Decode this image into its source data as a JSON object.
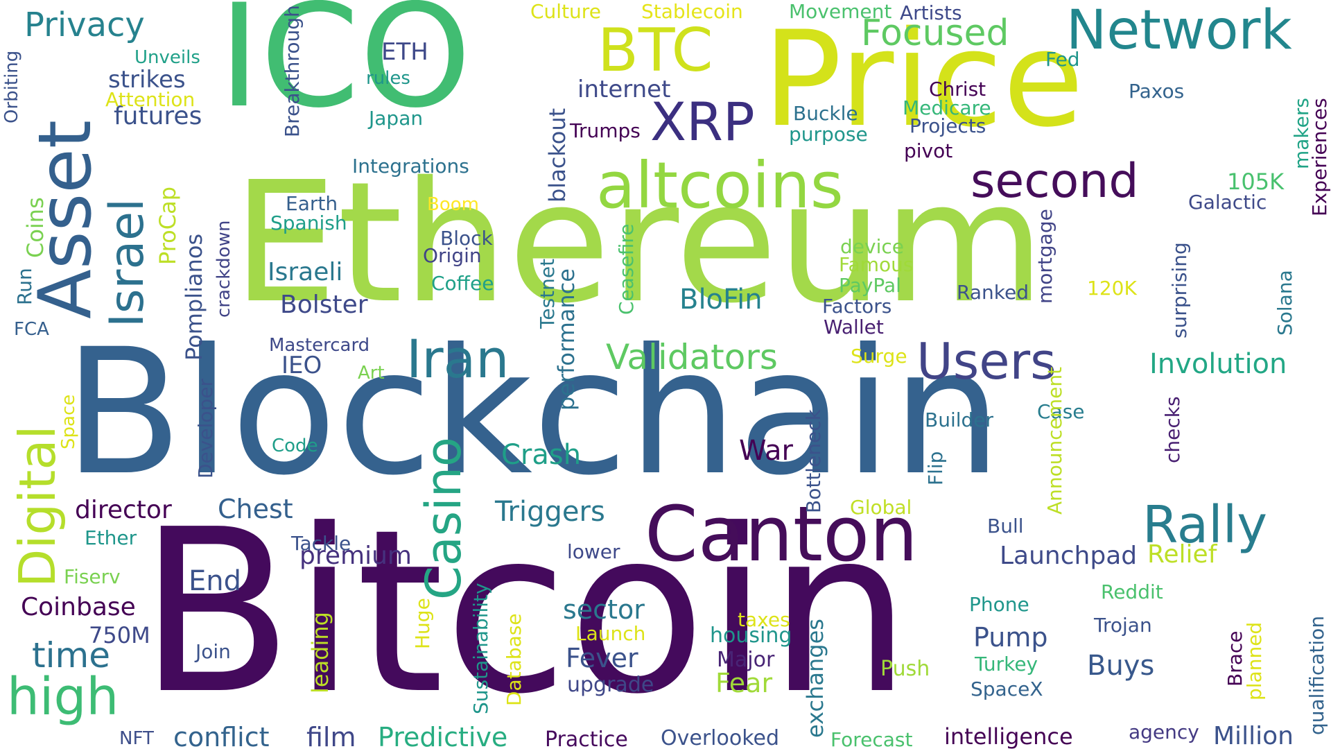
{
  "words": [
    {
      "text": "Bitcoin",
      "color": "#440a5c"
    },
    {
      "text": "Blockchain",
      "color": "#35628e"
    },
    {
      "text": "Ethereum",
      "color": "#a3d94a"
    },
    {
      "text": "Price",
      "color": "#d4e21a"
    },
    {
      "text": "ICO",
      "color": "#41bd72"
    },
    {
      "text": "Asset",
      "color": "#34608d"
    },
    {
      "text": "Canton",
      "color": "#450d5a"
    },
    {
      "text": "altcoins",
      "color": "#93d741"
    },
    {
      "text": "Network",
      "color": "#22868d"
    },
    {
      "text": "BTC",
      "color": "#cfe11c"
    },
    {
      "text": "second",
      "color": "#450d5a"
    },
    {
      "text": "Israel",
      "color": "#2c718e"
    },
    {
      "text": "Digital",
      "color": "#b5de2b"
    },
    {
      "text": "Iran",
      "color": "#2a788e"
    },
    {
      "text": "Users",
      "color": "#414487"
    },
    {
      "text": "Rally",
      "color": "#287d8e"
    },
    {
      "text": "Casino",
      "color": "#25a584"
    },
    {
      "text": "high",
      "color": "#3dbc74"
    },
    {
      "text": "XRP",
      "color": "#3b2f80"
    },
    {
      "text": "Focused",
      "color": "#5ec962"
    },
    {
      "text": "Validators",
      "color": "#5ec962"
    },
    {
      "text": "Privacy",
      "color": "#26828e"
    },
    {
      "text": "Involution",
      "color": "#22a785"
    },
    {
      "text": "BloFin",
      "color": "#26828e"
    },
    {
      "text": "Crash",
      "color": "#1f9f88"
    },
    {
      "text": "War",
      "color": "#440154"
    },
    {
      "text": "Triggers",
      "color": "#2a788e"
    },
    {
      "text": "Chest",
      "color": "#34608d"
    },
    {
      "text": "director",
      "color": "#440154"
    },
    {
      "text": "premium",
      "color": "#46327e"
    },
    {
      "text": "Launchpad",
      "color": "#3e4a89"
    },
    {
      "text": "Relief",
      "color": "#bddf26"
    },
    {
      "text": "End",
      "color": "#3b528b"
    },
    {
      "text": "Coinbase",
      "color": "#440154"
    },
    {
      "text": "750M",
      "color": "#3e4989"
    },
    {
      "text": "time",
      "color": "#2c718e"
    },
    {
      "text": "sector",
      "color": "#2a788e"
    },
    {
      "text": "Fever",
      "color": "#3b528b"
    },
    {
      "text": "Pump",
      "color": "#3b528b"
    },
    {
      "text": "Buys",
      "color": "#38588c"
    },
    {
      "text": "Fear",
      "color": "#a0da39"
    },
    {
      "text": "Major",
      "color": "#482475"
    },
    {
      "text": "upgrade",
      "color": "#3f4788"
    },
    {
      "text": "housing",
      "color": "#1f958b"
    },
    {
      "text": "Million",
      "color": "#3b528b"
    },
    {
      "text": "conflict",
      "color": "#33638d"
    },
    {
      "text": "film",
      "color": "#3f4788"
    },
    {
      "text": "Predictive",
      "color": "#27ad81"
    },
    {
      "text": "Practice",
      "color": "#460a5d"
    },
    {
      "text": "Overlooked",
      "color": "#3b528b"
    },
    {
      "text": "intelligence",
      "color": "#440154"
    },
    {
      "text": "agency",
      "color": "#443a83"
    },
    {
      "text": "Forecast",
      "color": "#4ac16d"
    },
    {
      "text": "NFT",
      "color": "#3d4e8a"
    },
    {
      "text": "futures",
      "color": "#3b528b"
    },
    {
      "text": "strikes",
      "color": "#3b528b"
    },
    {
      "text": "Unveils",
      "color": "#1fa088"
    },
    {
      "text": "Attention",
      "color": "#dde318"
    },
    {
      "text": "ETH",
      "color": "#3e4989"
    },
    {
      "text": "rules",
      "color": "#1f968b"
    },
    {
      "text": "Japan",
      "color": "#1f968b"
    },
    {
      "text": "internet",
      "color": "#3e4989"
    },
    {
      "text": "Trumps",
      "color": "#440154"
    },
    {
      "text": "Integrations",
      "color": "#2c718e"
    },
    {
      "text": "Earth",
      "color": "#355f8d"
    },
    {
      "text": "Boom",
      "color": "#fde725"
    },
    {
      "text": "Spanish",
      "color": "#1f9e89"
    },
    {
      "text": "Block",
      "color": "#3b528b"
    },
    {
      "text": "Origin",
      "color": "#414487"
    },
    {
      "text": "Israeli",
      "color": "#2a788e"
    },
    {
      "text": "Coffee",
      "color": "#1fa088"
    },
    {
      "text": "Bolster",
      "color": "#3e4989"
    },
    {
      "text": "Mastercard",
      "color": "#3e4989"
    },
    {
      "text": "IEO",
      "color": "#3b528b"
    },
    {
      "text": "Art",
      "color": "#7ad151"
    },
    {
      "text": "Code",
      "color": "#1f9e89"
    },
    {
      "text": "Culture",
      "color": "#dde318"
    },
    {
      "text": "Stablecoin",
      "color": "#e5e419"
    },
    {
      "text": "Movement",
      "color": "#4ac16d"
    },
    {
      "text": "Artists",
      "color": "#3e4989"
    },
    {
      "text": "Fed",
      "color": "#1f958b"
    },
    {
      "text": "Christ",
      "color": "#440154"
    },
    {
      "text": "Medicare",
      "color": "#35b779"
    },
    {
      "text": "Projects",
      "color": "#3b528b"
    },
    {
      "text": "pivot",
      "color": "#440154"
    },
    {
      "text": "Buckle",
      "color": "#2c718e"
    },
    {
      "text": "purpose",
      "color": "#1f968b"
    },
    {
      "text": "Paxos",
      "color": "#33638d"
    },
    {
      "text": "105K",
      "color": "#48c16e"
    },
    {
      "text": "Galactic",
      "color": "#3e4989"
    },
    {
      "text": "device",
      "color": "#7ad151"
    },
    {
      "text": "Famous",
      "color": "#a0da39"
    },
    {
      "text": "PayPal",
      "color": "#5ec962"
    },
    {
      "text": "Factors",
      "color": "#3b528b"
    },
    {
      "text": "Wallet",
      "color": "#481f71"
    },
    {
      "text": "Ranked",
      "color": "#3b528b"
    },
    {
      "text": "120K",
      "color": "#dde318"
    },
    {
      "text": "Surge",
      "color": "#dde318"
    },
    {
      "text": "Builder",
      "color": "#2c718e"
    },
    {
      "text": "Case",
      "color": "#287d8e"
    },
    {
      "text": "Global",
      "color": "#c0df25"
    },
    {
      "text": "Bull",
      "color": "#3b528b"
    },
    {
      "text": "lower",
      "color": "#3e4989"
    },
    {
      "text": "Tackle",
      "color": "#3b528b"
    },
    {
      "text": "Ether",
      "color": "#1f968b"
    },
    {
      "text": "Fiserv",
      "color": "#7ad151"
    },
    {
      "text": "FCA",
      "color": "#355f8d"
    },
    {
      "text": "Reddit",
      "color": "#4ac16d"
    },
    {
      "text": "Phone",
      "color": "#1f968b"
    },
    {
      "text": "Trojan",
      "color": "#3b528b"
    },
    {
      "text": "Turkey",
      "color": "#35b779"
    },
    {
      "text": "SpaceX",
      "color": "#33638d"
    },
    {
      "text": "Push",
      "color": "#a0da39"
    },
    {
      "text": "taxes",
      "color": "#dde318"
    },
    {
      "text": "Launch",
      "color": "#dde318"
    },
    {
      "text": "Join",
      "color": "#3b528b"
    },
    {
      "text": "Orbiting",
      "color": "#3b528b"
    },
    {
      "text": "Breakthrough",
      "color": "#3b528b"
    },
    {
      "text": "ProCap",
      "color": "#bddf26"
    },
    {
      "text": "Coins",
      "color": "#7ad151"
    },
    {
      "text": "Run",
      "color": "#2c718e"
    },
    {
      "text": "Pomplianos",
      "color": "#3b528b"
    },
    {
      "text": "crackdown",
      "color": "#414487"
    },
    {
      "text": "Space",
      "color": "#dde318"
    },
    {
      "text": "Developer",
      "color": "#3b528b"
    },
    {
      "text": "blackout",
      "color": "#3b528b"
    },
    {
      "text": "Testnet",
      "color": "#2a788e"
    },
    {
      "text": "performance",
      "color": "#2c718e"
    },
    {
      "text": "Ceasefire",
      "color": "#4ac16d"
    },
    {
      "text": "mortgage",
      "color": "#414487"
    },
    {
      "text": "surprising",
      "color": "#3b528b"
    },
    {
      "text": "Solana",
      "color": "#2a788e"
    },
    {
      "text": "makers",
      "color": "#20a386"
    },
    {
      "text": "Experiences",
      "color": "#440154"
    },
    {
      "text": "Announcement",
      "color": "#bddf26"
    },
    {
      "text": "Bottleneck",
      "color": "#3b528b"
    },
    {
      "text": "Flip",
      "color": "#2c718e"
    },
    {
      "text": "checks",
      "color": "#481f71"
    },
    {
      "text": "leading",
      "color": "#bddf26"
    },
    {
      "text": "Huge",
      "color": "#dde318"
    },
    {
      "text": "Sustainability",
      "color": "#1f968b"
    },
    {
      "text": "Database",
      "color": "#dde318"
    },
    {
      "text": "exchanges",
      "color": "#2a788e"
    },
    {
      "text": "Brace",
      "color": "#440154"
    },
    {
      "text": "planned",
      "color": "#dde318"
    },
    {
      "text": "qualification",
      "color": "#33638d"
    }
  ]
}
